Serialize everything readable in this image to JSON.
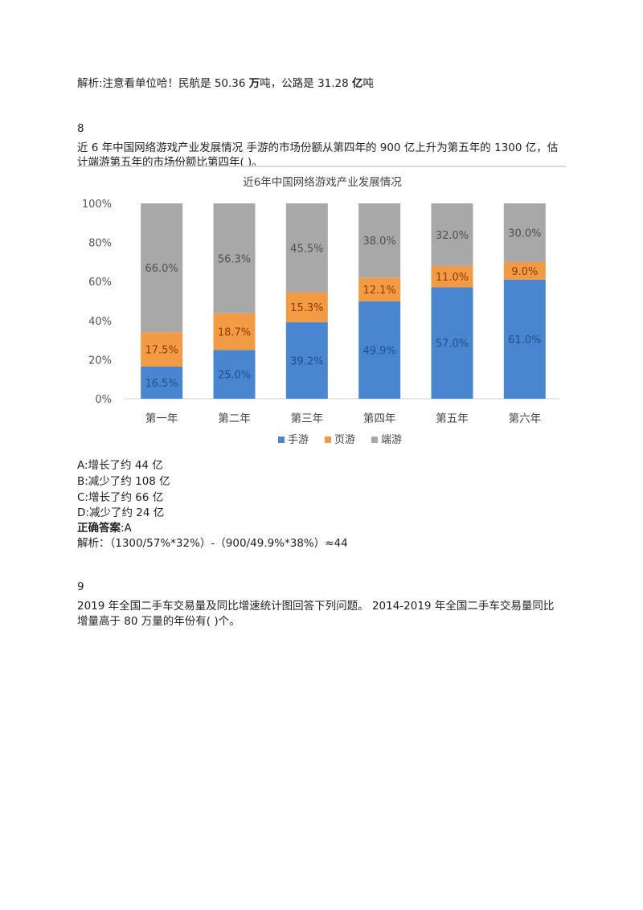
{
  "q7": {
    "analysis_prefix": "解析:注意看单位哈！民航是 50.36 ",
    "unit1": "万",
    "analysis_mid": "吨，公路是 31.28 ",
    "unit2": "亿",
    "analysis_suffix": "吨"
  },
  "q8": {
    "number": "8",
    "stem_line1": "近 6 年中国网络游戏产业发展情况  手游的市场份额从第四年的 900 亿上升为第五年的 1300 亿，估",
    "stem_line2": "计端游第五年的市场份额比第四年(  )。",
    "options": [
      "A:增长了约 44 亿",
      "B:减少了约 108 亿",
      "C:增长了约 66 亿",
      "D:减少了约 24 亿"
    ],
    "answer_label": "正确答案",
    "answer_value": ":A",
    "analysis": "解析：（1300/57%*32%）-（900/49.9%*38%）≈44"
  },
  "q9": {
    "number": "9",
    "stem_line1": "2019 年全国二手车交易量及同比增速统计图回答下列问题。  2014-2019 年全国二手车交易量同比",
    "stem_line2": "增量高于 80 万量的年份有(  )个。"
  },
  "chart_data": {
    "type": "bar",
    "stacked": true,
    "title": "近6年中国网络游戏产业发展情况",
    "categories": [
      "第一年",
      "第二年",
      "第三年",
      "第四年",
      "第五年",
      "第六年"
    ],
    "y_ticks": [
      "0%",
      "20%",
      "40%",
      "60%",
      "80%",
      "100%"
    ],
    "ylim": [
      0,
      100
    ],
    "legend_position": "bottom",
    "series": [
      {
        "name": "手游",
        "color": "#4a86cf",
        "values": [
          16.5,
          25.0,
          39.2,
          49.9,
          57.0,
          61.0
        ],
        "labels": [
          "16.5%",
          "25.0%",
          "39.2%",
          "49.9%",
          "57.0%",
          "61.0%"
        ]
      },
      {
        "name": "页游",
        "color": "#f39a44",
        "values": [
          17.5,
          18.7,
          15.3,
          12.1,
          11.0,
          9.0
        ],
        "labels": [
          "17.5%",
          "18.7%",
          "15.3%",
          "12.1%",
          "11.0%",
          "9.0%"
        ]
      },
      {
        "name": "端游",
        "color": "#a8a8a8",
        "values": [
          66.0,
          56.3,
          45.5,
          38.0,
          32.0,
          30.0
        ],
        "labels": [
          "66.0%",
          "56.3%",
          "45.5%",
          "38.0%",
          "32.0%",
          "30.0%"
        ]
      }
    ]
  }
}
